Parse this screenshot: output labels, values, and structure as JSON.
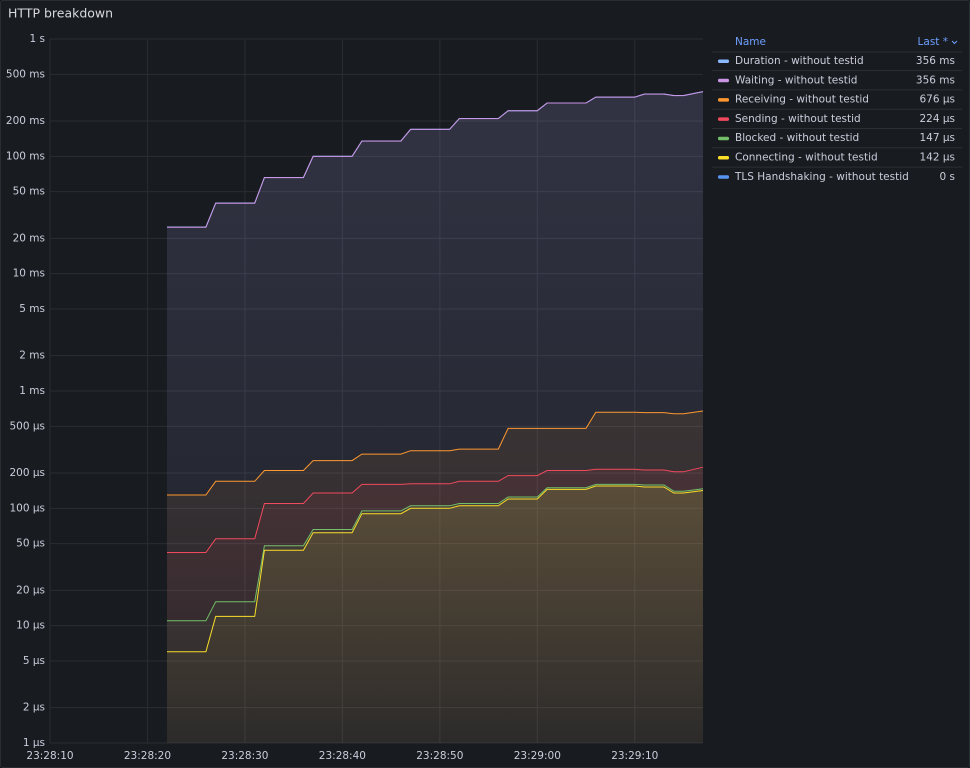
{
  "chart_data": {
    "type": "line",
    "title": "HTTP breakdown",
    "log_scale": true,
    "grid": true,
    "legend_position": "right",
    "legend_header": [
      "Name",
      "Last *"
    ],
    "x": [
      "23:28:22",
      "23:28:26",
      "23:28:27",
      "23:28:31",
      "23:28:32",
      "23:28:36",
      "23:28:37",
      "23:28:41",
      "23:28:42",
      "23:28:46",
      "23:28:47",
      "23:28:51",
      "23:28:52",
      "23:28:56",
      "23:28:57",
      "23:29:00",
      "23:29:01",
      "23:29:05",
      "23:29:06",
      "23:29:10",
      "23:29:11",
      "23:29:13",
      "23:29:14",
      "23:29:15",
      "23:29:17"
    ],
    "xlim": [
      "23:28:10",
      "23:29:17"
    ],
    "xticks": [
      "23:28:10",
      "23:28:20",
      "23:28:30",
      "23:28:40",
      "23:28:50",
      "23:29:00",
      "23:29:10"
    ],
    "ylim": [
      1e-06,
      1
    ],
    "yticks": [
      {
        "value": 1,
        "label": "1 s"
      },
      {
        "value": 0.5,
        "label": "500 ms"
      },
      {
        "value": 0.2,
        "label": "200 ms"
      },
      {
        "value": 0.1,
        "label": "100 ms"
      },
      {
        "value": 0.05,
        "label": "50 ms"
      },
      {
        "value": 0.02,
        "label": "20 ms"
      },
      {
        "value": 0.01,
        "label": "10 ms"
      },
      {
        "value": 0.005,
        "label": "5 ms"
      },
      {
        "value": 0.002,
        "label": "2 ms"
      },
      {
        "value": 0.001,
        "label": "1 ms"
      },
      {
        "value": 0.0005,
        "label": "500 µs"
      },
      {
        "value": 0.0002,
        "label": "200 µs"
      },
      {
        "value": 0.0001,
        "label": "100 µs"
      },
      {
        "value": 5e-05,
        "label": "50 µs"
      },
      {
        "value": 2e-05,
        "label": "20 µs"
      },
      {
        "value": 1e-05,
        "label": "10 µs"
      },
      {
        "value": 5e-06,
        "label": "5 µs"
      },
      {
        "value": 2e-06,
        "label": "2 µs"
      },
      {
        "value": 1e-06,
        "label": "1 µs"
      }
    ],
    "series": [
      {
        "name": "Duration - without testid",
        "color": "#8ab8ff",
        "last": 0.356,
        "last_label": "356 ms",
        "values": [
          0.025,
          0.025,
          0.04,
          0.04,
          0.066,
          0.066,
          0.1,
          0.1,
          0.135,
          0.135,
          0.17,
          0.17,
          0.21,
          0.21,
          0.245,
          0.245,
          0.285,
          0.285,
          0.32,
          0.32,
          0.34,
          0.34,
          0.33,
          0.33,
          0.356
        ]
      },
      {
        "name": "Waiting - without testid",
        "color": "#ca95e5",
        "last": 0.356,
        "last_label": "356 ms",
        "values": [
          0.0249,
          0.0249,
          0.0399,
          0.0399,
          0.0659,
          0.0659,
          0.0998,
          0.0998,
          0.1348,
          0.1348,
          0.1698,
          0.1698,
          0.2098,
          0.2098,
          0.2448,
          0.2448,
          0.2848,
          0.2848,
          0.3196,
          0.3196,
          0.3394,
          0.3394,
          0.3294,
          0.3294,
          0.356
        ]
      },
      {
        "name": "Receiving - without testid",
        "color": "#ff9830",
        "last": 0.000676,
        "last_label": "676 µs",
        "values": [
          0.00013,
          0.00013,
          0.00017,
          0.00017,
          0.00021,
          0.00021,
          0.000255,
          0.000255,
          0.00029,
          0.00029,
          0.00031,
          0.00031,
          0.00032,
          0.00032,
          0.00048,
          0.00048,
          0.00048,
          0.00048,
          0.00066,
          0.00066,
          0.000655,
          0.000655,
          0.00064,
          0.00064,
          0.000676
        ]
      },
      {
        "name": "Sending - without testid",
        "color": "#f2495c",
        "last": 0.000224,
        "last_label": "224 µs",
        "values": [
          4.2e-05,
          4.2e-05,
          5.5e-05,
          5.5e-05,
          0.00011,
          0.00011,
          0.000135,
          0.000135,
          0.00016,
          0.00016,
          0.000162,
          0.000162,
          0.00017,
          0.00017,
          0.00019,
          0.00019,
          0.00021,
          0.00021,
          0.000215,
          0.000215,
          0.000212,
          0.000212,
          0.000205,
          0.000205,
          0.000224
        ]
      },
      {
        "name": "Blocked - without testid",
        "color": "#73bf69",
        "last": 0.000147,
        "last_label": "147 µs",
        "values": [
          1.1e-05,
          1.1e-05,
          1.6e-05,
          1.6e-05,
          4.8e-05,
          4.8e-05,
          6.6e-05,
          6.6e-05,
          9.5e-05,
          9.5e-05,
          0.000105,
          0.000105,
          0.00011,
          0.00011,
          0.000125,
          0.000125,
          0.00015,
          0.00015,
          0.00016,
          0.00016,
          0.000158,
          0.000158,
          0.00014,
          0.00014,
          0.000147
        ]
      },
      {
        "name": "Connecting - without testid",
        "color": "#fade2a",
        "last": 0.000142,
        "last_label": "142 µs",
        "values": [
          6e-06,
          6e-06,
          1.2e-05,
          1.2e-05,
          4.4e-05,
          4.4e-05,
          6.2e-05,
          6.2e-05,
          9e-05,
          9e-05,
          0.0001,
          0.0001,
          0.000105,
          0.000105,
          0.00012,
          0.00012,
          0.000145,
          0.000145,
          0.000155,
          0.000155,
          0.000152,
          0.000152,
          0.000135,
          0.000135,
          0.000142
        ]
      },
      {
        "name": "TLS Handshaking - without testid",
        "color": "#5794f2",
        "last": 0,
        "last_label": "0 s",
        "values": [
          0,
          0,
          0,
          0,
          0,
          0,
          0,
          0,
          0,
          0,
          0,
          0,
          0,
          0,
          0,
          0,
          0,
          0,
          0,
          0,
          0,
          0,
          0,
          0,
          0
        ]
      }
    ]
  }
}
